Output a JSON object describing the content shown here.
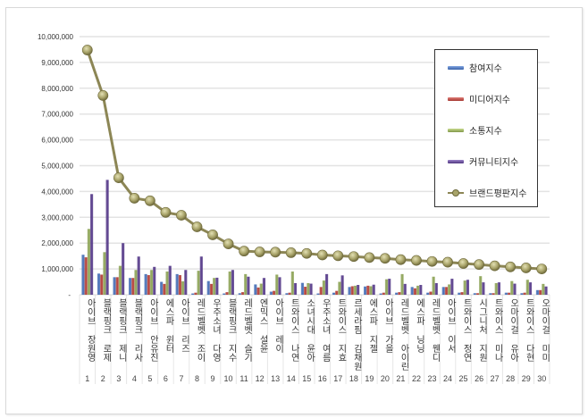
{
  "chart_data": {
    "type": "bar",
    "title": "",
    "xlabel": "",
    "ylabel": "",
    "ylim": [
      0,
      10000000
    ],
    "yticks": [
      "-",
      "1,000,000",
      "2,000,000",
      "3,000,000",
      "4,000,000",
      "5,000,000",
      "6,000,000",
      "7,000,000",
      "8,000,000",
      "9,000,000",
      "10,000,000"
    ],
    "grid": true,
    "legend_position": "right-inside",
    "categories": [
      "아이브 장원영",
      "블랙핑크 로제",
      "블랙핑크 제니",
      "블랙핑크 리사",
      "아이브 안유진",
      "에스파 윈터",
      "아이브 리즈",
      "레드벨벳 조이",
      "우주소녀 다영",
      "블랙핑크 지수",
      "레드벨벳 슬기",
      "엔믹스 설윤",
      "아이브 레이",
      "트와이스 나연",
      "소녀시대 윤아",
      "우주소녀 여름",
      "트와이스 지효",
      "르세라핌 김채원",
      "에스파 지젤",
      "아이브 가을",
      "레드벨벳 아이린",
      "에스파 닝닝",
      "레드벨벳 웬디",
      "아이브 이서",
      "트와이스 정연",
      "시그니처 지원",
      "트와이스 미나",
      "오마이걸 유아",
      "트와이스 다현",
      "오마이걸 미미"
    ],
    "ranks": [
      "1",
      "2",
      "3",
      "4",
      "5",
      "6",
      "7",
      "8",
      "9",
      "10",
      "11",
      "12",
      "13",
      "14",
      "15",
      "16",
      "17",
      "18",
      "19",
      "20",
      "21",
      "22",
      "23",
      "24",
      "25",
      "26",
      "27",
      "28",
      "29",
      "30"
    ],
    "series": [
      {
        "name": "참여지수",
        "kind": "bar",
        "color": "#4a72b8",
        "values": [
          1550000,
          820000,
          680000,
          650000,
          800000,
          500000,
          800000,
          50000,
          530000,
          50000,
          60000,
          400000,
          120000,
          60000,
          460000,
          50000,
          80000,
          300000,
          320000,
          50000,
          80000,
          300000,
          80000,
          300000,
          80000,
          60000,
          60000,
          80000,
          60000,
          180000
        ]
      },
      {
        "name": "미디어지수",
        "kind": "bar",
        "color": "#b5413b",
        "values": [
          1450000,
          780000,
          680000,
          650000,
          760000,
          420000,
          760000,
          80000,
          420000,
          100000,
          100000,
          280000,
          150000,
          80000,
          310000,
          300000,
          150000,
          330000,
          350000,
          80000,
          100000,
          250000,
          120000,
          300000,
          100000,
          60000,
          60000,
          80000,
          80000,
          180000
        ]
      },
      {
        "name": "소통지수",
        "kind": "bar",
        "color": "#8fa55a",
        "values": [
          2550000,
          1650000,
          1120000,
          960000,
          960000,
          900000,
          520000,
          930000,
          650000,
          900000,
          800000,
          430000,
          780000,
          900000,
          450000,
          550000,
          500000,
          350000,
          330000,
          600000,
          800000,
          350000,
          700000,
          400000,
          550000,
          720000,
          450000,
          530000,
          580000,
          420000
        ]
      },
      {
        "name": "커뮤니티지수",
        "kind": "bar",
        "color": "#5a3f8c",
        "values": [
          3900000,
          4450000,
          2000000,
          1480000,
          1080000,
          1120000,
          960000,
          1480000,
          660000,
          960000,
          700000,
          650000,
          680000,
          450000,
          430000,
          800000,
          750000,
          380000,
          390000,
          620000,
          420000,
          380000,
          450000,
          620000,
          580000,
          480000,
          480000,
          430000,
          480000,
          320000
        ]
      },
      {
        "name": "브랜드평판지수",
        "kind": "line",
        "color": "#8c8655",
        "values": [
          9480000,
          7720000,
          4530000,
          3740000,
          3640000,
          3190000,
          3080000,
          2630000,
          2320000,
          1970000,
          1690000,
          1660000,
          1650000,
          1630000,
          1600000,
          1540000,
          1510000,
          1480000,
          1440000,
          1410000,
          1360000,
          1330000,
          1290000,
          1260000,
          1210000,
          1170000,
          1120000,
          1080000,
          1040000,
          1000000
        ]
      }
    ]
  },
  "legend": {
    "items": [
      {
        "label": "참여지수",
        "color": "#4a72b8"
      },
      {
        "label": "미디어지수",
        "color": "#b5413b"
      },
      {
        "label": "소통지수",
        "color": "#8fa55a"
      },
      {
        "label": "커뮤니티지수",
        "color": "#5a3f8c"
      },
      {
        "label": "브랜드평판지수",
        "color": "#8c8655"
      }
    ]
  }
}
